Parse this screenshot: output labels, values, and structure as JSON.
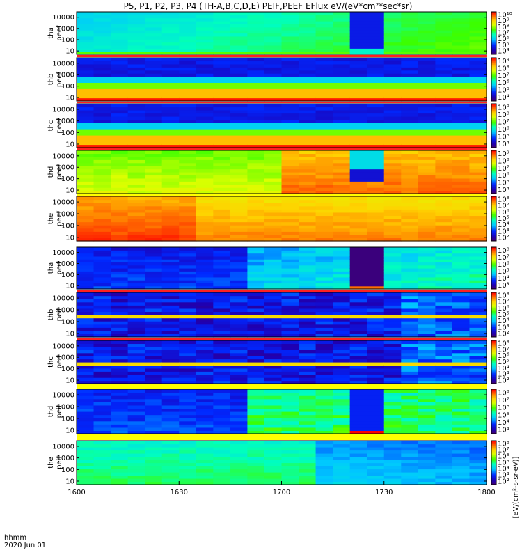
{
  "chart_data": {
    "type": "heatmap",
    "title": "P5, P1, P2, P3, P4 (TH-A,B,C,D,E) PEIF,PEEF EFlux eV/(eV*cm²*sec*sr)",
    "x_axis": {
      "format_label": "hhmm",
      "date": "2020 Jun 01",
      "range": [
        "1600",
        "1800"
      ],
      "ticks": [
        "1600",
        "1630",
        "1700",
        "1730",
        "1800"
      ]
    },
    "y_axis": {
      "scale": "log",
      "range": [
        5,
        30000
      ],
      "ticks": [
        "10",
        "100",
        "1000",
        "10000"
      ]
    },
    "colorbar_unit_label": "[eV/(cm²-s-sr-eV)]",
    "panels": [
      {
        "label": [
          "tha",
          "peef"
        ],
        "cbar_ticks": [
          "10⁴",
          "10⁵",
          "10⁶",
          "10⁷",
          "10⁸",
          "10⁹",
          "10¹⁰"
        ]
      },
      {
        "label": [
          "thb",
          "peef"
        ],
        "cbar_ticks": [
          "10⁴",
          "10⁵",
          "10⁶",
          "10⁷",
          "10⁸",
          "10⁹"
        ]
      },
      {
        "label": [
          "thc",
          "peef"
        ],
        "cbar_ticks": [
          "10⁴",
          "10⁵",
          "10⁶",
          "10⁷",
          "10⁸",
          "10⁹"
        ]
      },
      {
        "label": [
          "thd",
          "peef"
        ],
        "cbar_ticks": [
          "10⁴",
          "10⁵",
          "10⁶",
          "10⁷",
          "10⁸",
          "10⁹"
        ]
      },
      {
        "label": [
          "the",
          "peef"
        ],
        "cbar_ticks": [
          "10²",
          "10³",
          "10⁴",
          "10⁵",
          "10⁶",
          "10⁷",
          "10⁸"
        ]
      },
      {
        "label": [
          "tha",
          "peif"
        ],
        "cbar_ticks": [
          "10³",
          "10⁴",
          "10⁵",
          "10⁶",
          "10⁷",
          "10⁸"
        ]
      },
      {
        "label": [
          "thb",
          "peif"
        ],
        "cbar_ticks": [
          "10²",
          "10³",
          "10⁴",
          "10⁵",
          "10⁶",
          "10⁷",
          "10⁸"
        ]
      },
      {
        "label": [
          "thc",
          "peif"
        ],
        "cbar_ticks": [
          "10²",
          "10³",
          "10⁴",
          "10⁵",
          "10⁶",
          "10⁷",
          "10⁸"
        ]
      },
      {
        "label": [
          "thd",
          "peif"
        ],
        "cbar_ticks": [
          "10³",
          "10⁴",
          "10⁵",
          "10⁶",
          "10⁷",
          "10⁸"
        ]
      },
      {
        "label": [
          "the",
          "peif"
        ],
        "cbar_ticks": [
          "10²",
          "10³",
          "10⁴",
          "10⁵",
          "10⁶",
          "10⁷",
          "10⁸"
        ]
      }
    ]
  }
}
